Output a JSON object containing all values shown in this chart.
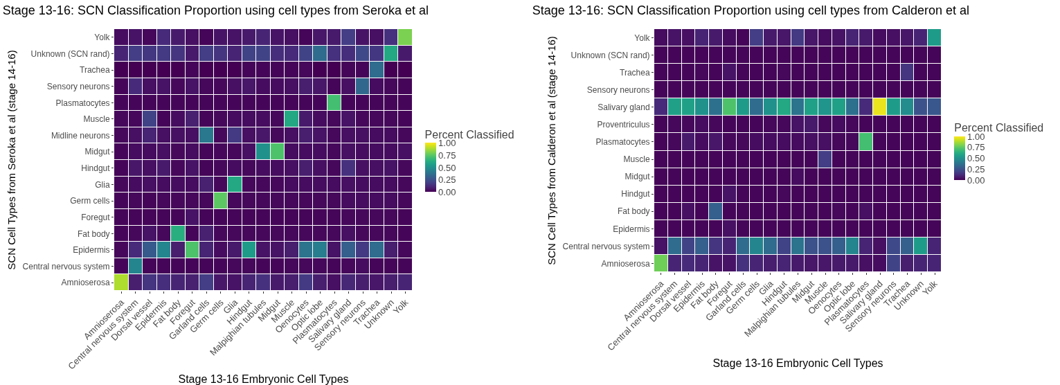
{
  "chart_data": [
    {
      "type": "heatmap",
      "title": "Stage 13-16: SCN Classification Proportion using cell types from Seroka et al",
      "xlabel": "Stage 13-16 Embryonic Cell Types",
      "ylabel": "SCN Cell Types from Seroka et al (stage 14-16)",
      "clabel": "Percent Classified",
      "clim": [
        0,
        1
      ],
      "cticks": [
        {
          "value": 0,
          "label": "0.00"
        },
        {
          "value": 0.25,
          "label": "0.25"
        },
        {
          "value": 0.5,
          "label": "0.50"
        },
        {
          "value": 0.75,
          "label": "0.75"
        },
        {
          "value": 1,
          "label": "1.00"
        }
      ],
      "categories": [
        "Amnioserosa",
        "Central nervous system",
        "Dorsal vessel",
        "Epidermis",
        "Fat body",
        "Foregut",
        "Garland cells",
        "Germ cells",
        "Glia",
        "Hindgut",
        "Malpighian tubules",
        "Midgut",
        "Muscle",
        "Oenocytes",
        "Optic lobe",
        "Plasmatocytes",
        "Salivary gland",
        "Sensory neurons",
        "Trachea",
        "Unknown",
        "Yolk"
      ],
      "y_categories": [
        "Yolk",
        "Unknown (SCN rand)",
        "Trachea",
        "Sensory neurons",
        "Plasmatocytes",
        "Muscle",
        "Midline neurons",
        "Midgut",
        "Hindgut",
        "Glia",
        "Germ cells",
        "Foregut",
        "Fat body",
        "Epidermis",
        "Central nervous system",
        "Amnioserosa"
      ],
      "cells": [
        [
          0.03,
          0.05,
          0.02,
          0.12,
          0.07,
          0.04,
          0.01,
          0.05,
          0.05,
          0.07,
          0.1,
          0.05,
          0.04,
          0.01,
          0.06,
          0.07,
          0.18,
          0.05,
          0.04,
          0.14,
          0.8
        ],
        [
          0.1,
          0.18,
          0.16,
          0.17,
          0.15,
          0.07,
          0.18,
          0.15,
          0.1,
          0.2,
          0.2,
          0.13,
          0.12,
          0.2,
          0.35,
          0.14,
          0.13,
          0.22,
          0.16,
          0.6,
          0.07
        ],
        [
          0,
          0,
          0,
          0,
          0,
          0.01,
          0,
          0,
          0,
          0.01,
          0.01,
          0.01,
          0.01,
          0.02,
          0,
          0,
          0.01,
          0.01,
          0.35,
          0,
          0
        ],
        [
          0.01,
          0.12,
          0.04,
          0.05,
          0.02,
          0.05,
          0.02,
          0.02,
          0.04,
          0.06,
          0.03,
          0.03,
          0.04,
          0.08,
          0.06,
          0.01,
          0.04,
          0.33,
          0.03,
          0.02,
          0.01
        ],
        [
          0.01,
          0.01,
          0.01,
          0.01,
          0.01,
          0.01,
          0.01,
          0.01,
          0.01,
          0.01,
          0.01,
          0.01,
          0.01,
          0.01,
          0.01,
          0.7,
          0.01,
          0.01,
          0.01,
          0.01,
          0.01
        ],
        [
          0.02,
          0.02,
          0.2,
          0.01,
          0.03,
          0.09,
          0.01,
          0.02,
          0.03,
          0.03,
          0.03,
          0.02,
          0.6,
          0.07,
          0.03,
          0.02,
          0.05,
          0.02,
          0.02,
          0.02,
          0.01
        ],
        [
          0.02,
          0.04,
          0.1,
          0.04,
          0.04,
          0.04,
          0.4,
          0.02,
          0.17,
          0.04,
          0.06,
          0.02,
          0.04,
          0.08,
          0.05,
          0.02,
          0.04,
          0.04,
          0.03,
          0.03,
          0.02
        ],
        [
          0.01,
          0.03,
          0.03,
          0.04,
          0.02,
          0.03,
          0.01,
          0.02,
          0.02,
          0.04,
          0.5,
          0.72,
          0.03,
          0.03,
          0.03,
          0.02,
          0.04,
          0.03,
          0.03,
          0.03,
          0.04
        ],
        [
          0.01,
          0.06,
          0.04,
          0.07,
          0.02,
          0.05,
          0.01,
          0.02,
          0.03,
          0.02,
          0.03,
          0.03,
          0.04,
          0.08,
          0.04,
          0.02,
          0.14,
          0.04,
          0.04,
          0.05,
          0.02
        ],
        [
          0.02,
          0.03,
          0.04,
          0.03,
          0.03,
          0.03,
          0.09,
          0.02,
          0.6,
          0.02,
          0.02,
          0.02,
          0.03,
          0.03,
          0.03,
          0.03,
          0.04,
          0.03,
          0.03,
          0.03,
          0.02
        ],
        [
          0.01,
          0.02,
          0.01,
          0.02,
          0.02,
          0.02,
          0.02,
          0.75,
          0.02,
          0.02,
          0.02,
          0.02,
          0.02,
          0.02,
          0.02,
          0.02,
          0.03,
          0.03,
          0.03,
          0.03,
          0.02
        ],
        [
          0.01,
          0.01,
          0.01,
          0.01,
          0.01,
          0.05,
          0.01,
          0.01,
          0.01,
          0.01,
          0.01,
          0.01,
          0.01,
          0.01,
          0.01,
          0.01,
          0.02,
          0.02,
          0.02,
          0.02,
          0.01
        ],
        [
          0.01,
          0.02,
          0.05,
          0.02,
          0.63,
          0.01,
          0.09,
          0.02,
          0.02,
          0.02,
          0.02,
          0.02,
          0.02,
          0.02,
          0.02,
          0.02,
          0.04,
          0.02,
          0.02,
          0.02,
          0.01
        ],
        [
          0.02,
          0.12,
          0.28,
          0.45,
          0.08,
          0.72,
          0.1,
          0.03,
          0.07,
          0.55,
          0.05,
          0.05,
          0.08,
          0.38,
          0.42,
          0.05,
          0.3,
          0.17,
          0.35,
          0.08,
          0.02
        ],
        [
          0.01,
          0.45,
          0.01,
          0.01,
          0.01,
          0.01,
          0.01,
          0.01,
          0.02,
          0.02,
          0.01,
          0.01,
          0.02,
          0.02,
          0.02,
          0.01,
          0.02,
          0.03,
          0.01,
          0.01,
          0.01
        ],
        [
          0.88,
          0.08,
          0.15,
          0.13,
          0.1,
          0.09,
          0.18,
          0.06,
          0.05,
          0.1,
          0.14,
          0.07,
          0.08,
          0.17,
          0.08,
          0.04,
          0.11,
          0.08,
          0.06,
          0.08,
          0.1
        ]
      ]
    },
    {
      "type": "heatmap",
      "title": "Stage 13-16: SCN Classification Proportion using cell types from Calderon et al",
      "xlabel": "Stage 13-16 Embryonic Cell Types",
      "ylabel": "SCN Cell Types from Calderon et al (stage 14-16)",
      "clabel": "Percent Classified",
      "clim": [
        0,
        1
      ],
      "cticks": [
        {
          "value": 0,
          "label": "0.00"
        },
        {
          "value": 0.25,
          "label": "0.25"
        },
        {
          "value": 0.5,
          "label": "0.50"
        },
        {
          "value": 0.75,
          "label": "0.75"
        },
        {
          "value": 1,
          "label": "1.00"
        }
      ],
      "categories": [
        "Amnioserosa",
        "Central nervous system",
        "Dorsal vessel",
        "Epidermis",
        "Fat body",
        "Foregut",
        "Garland cells",
        "Germ cells",
        "Glia",
        "Hindgut",
        "Malpighian tubules",
        "Midgut",
        "Muscle",
        "Oenocytes",
        "Optic lobe",
        "Plasmatocytes",
        "Salivary gland",
        "Sensory neurons",
        "Trachea",
        "Unknown",
        "Yolk"
      ],
      "y_categories": [
        "Yolk",
        "Unknown (SCN rand)",
        "Trachea",
        "Sensory neurons",
        "Salivary gland",
        "Proventriculus",
        "Plasmatocytes",
        "Muscle",
        "Midgut",
        "Hindgut",
        "Fat body",
        "Epidermis",
        "Central nervous system",
        "Amnioserosa"
      ],
      "cells": [
        [
          0.03,
          0.05,
          0.04,
          0.1,
          0.07,
          0.03,
          0.01,
          0.18,
          0.07,
          0.06,
          0.17,
          0.06,
          0.03,
          0.05,
          0.1,
          0.07,
          0.03,
          0.04,
          0.06,
          0.1,
          0.55
        ],
        [
          0.01,
          0.01,
          0.01,
          0.01,
          0.01,
          0.01,
          0.01,
          0.01,
          0.01,
          0.01,
          0.01,
          0.01,
          0.01,
          0.01,
          0.01,
          0.01,
          0.01,
          0.01,
          0.01,
          0.01,
          0.01
        ],
        [
          0.01,
          0.01,
          0.01,
          0.02,
          0.01,
          0.05,
          0.01,
          0.01,
          0.01,
          0.02,
          0.01,
          0.01,
          0.01,
          0.01,
          0.01,
          0.01,
          0.01,
          0.01,
          0.15,
          0.01,
          0.01
        ],
        [
          0.01,
          0.01,
          0.01,
          0.01,
          0.01,
          0.01,
          0.01,
          0.01,
          0.01,
          0.01,
          0.01,
          0.01,
          0.01,
          0.01,
          0.01,
          0.01,
          0.01,
          0.01,
          0.01,
          0.01,
          0.01
        ],
        [
          0.12,
          0.57,
          0.57,
          0.5,
          0.37,
          0.72,
          0.55,
          0.35,
          0.5,
          0.6,
          0.38,
          0.57,
          0.52,
          0.57,
          0.37,
          0.12,
          0.97,
          0.55,
          0.48,
          0.25,
          0.27
        ],
        [
          0.01,
          0.02,
          0.02,
          0.03,
          0.02,
          0.01,
          0.01,
          0.01,
          0.02,
          0.02,
          0.05,
          0.07,
          0.02,
          0.03,
          0.02,
          0.01,
          0.01,
          0.01,
          0.01,
          0.01,
          0.01
        ],
        [
          0.01,
          0.02,
          0.07,
          0.03,
          0.06,
          0.02,
          0.02,
          0.03,
          0.03,
          0.03,
          0.03,
          0.04,
          0.04,
          0.02,
          0.02,
          0.7,
          0.01,
          0.01,
          0.01,
          0.01,
          0.01
        ],
        [
          0.01,
          0.01,
          0.01,
          0.01,
          0.01,
          0.01,
          0.01,
          0.01,
          0.01,
          0.01,
          0.01,
          0.01,
          0.18,
          0.01,
          0.01,
          0.01,
          0.01,
          0.01,
          0.01,
          0.01,
          0.01
        ],
        [
          0.01,
          0.01,
          0.01,
          0.01,
          0.01,
          0.01,
          0.01,
          0.01,
          0.01,
          0.01,
          0.03,
          0.01,
          0.01,
          0.01,
          0.01,
          0.01,
          0.01,
          0.01,
          0.01,
          0.01,
          0.01
        ],
        [
          0.01,
          0.01,
          0.01,
          0.01,
          0.01,
          0.05,
          0.01,
          0.01,
          0.01,
          0.02,
          0.01,
          0.01,
          0.01,
          0.01,
          0.01,
          0.01,
          0.01,
          0.01,
          0.01,
          0.01,
          0.01
        ],
        [
          0.01,
          0.01,
          0.04,
          0.01,
          0.3,
          0.01,
          0.01,
          0.01,
          0.01,
          0.01,
          0.01,
          0.01,
          0.01,
          0.02,
          0.01,
          0.04,
          0.01,
          0.01,
          0.01,
          0.01,
          0.01
        ],
        [
          0.01,
          0.01,
          0.01,
          0.01,
          0.01,
          0.04,
          0.01,
          0.01,
          0.01,
          0.01,
          0.01,
          0.01,
          0.01,
          0.01,
          0.01,
          0.01,
          0.01,
          0.01,
          0.01,
          0.01,
          0.01
        ],
        [
          0.05,
          0.35,
          0.2,
          0.3,
          0.15,
          0.1,
          0.35,
          0.45,
          0.35,
          0.2,
          0.38,
          0.25,
          0.25,
          0.3,
          0.45,
          0.1,
          0.04,
          0.22,
          0.3,
          0.55,
          0.1
        ],
        [
          0.78,
          0.1,
          0.12,
          0.1,
          0.05,
          0.05,
          0.14,
          0.1,
          0.08,
          0.1,
          0.07,
          0.06,
          0.06,
          0.07,
          0.07,
          0.04,
          0.03,
          0.2,
          0.08,
          0.1,
          0.1
        ]
      ]
    }
  ]
}
